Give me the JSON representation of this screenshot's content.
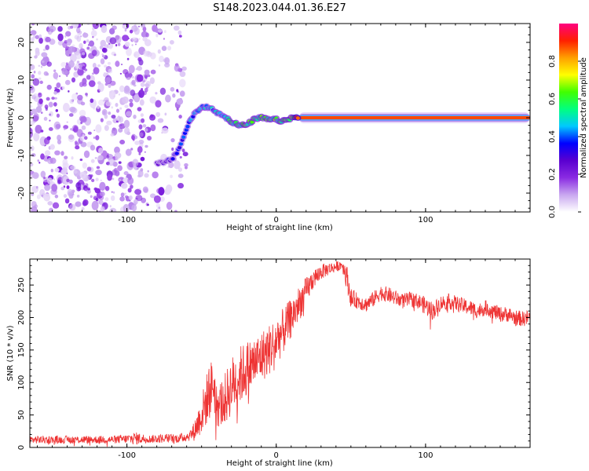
{
  "title": "S148.2023.044.01.36.E27",
  "chart_data": [
    {
      "type": "heatmap",
      "xlabel": "Height of straight line (km)",
      "ylabel": "Frequency (Hz)",
      "xlim": [
        -165,
        170
      ],
      "ylim": [
        -25,
        25
      ],
      "xticks": [
        -100,
        0,
        100
      ],
      "yticks": [
        -20,
        -10,
        0,
        10,
        20
      ],
      "colorbar": {
        "label": "Normalized spectral amplitude",
        "range": [
          0,
          1
        ],
        "ticks": [
          0.0,
          0.2,
          0.4,
          0.6,
          0.8
        ],
        "tick_labels": [
          "0.0",
          "0.2",
          "0.4",
          "0.6",
          "0.8"
        ],
        "colormap": [
          "#ffffff",
          "#c9a8f0",
          "#8a2be2",
          "#5a00d0",
          "#0000ff",
          "#00c8ff",
          "#00ff80",
          "#40ff00",
          "#ffff00",
          "#ffa000",
          "#ff2000",
          "#ff0080"
        ]
      },
      "ridge": {
        "x": [
          -80,
          -75,
          -70,
          -66,
          -62,
          -58,
          -55,
          -52,
          -48,
          -44,
          -40,
          -35,
          -30,
          -25,
          -20,
          -15,
          -10,
          -5,
          0,
          5,
          10,
          15,
          170
        ],
        "y": [
          -12,
          -12,
          -11,
          -9,
          -5,
          -1,
          1,
          2,
          3,
          2.5,
          1.5,
          0.5,
          -1,
          -2,
          -2,
          -0.5,
          0,
          -0.5,
          -0.5,
          -1,
          0,
          0,
          0
        ],
        "amplitude": [
          0.28,
          0.3,
          0.32,
          0.35,
          0.38,
          0.42,
          0.45,
          0.5,
          0.48,
          0.45,
          0.5,
          0.55,
          0.58,
          0.6,
          0.62,
          0.6,
          0.62,
          0.6,
          0.65,
          0.6,
          0.7,
          0.9,
          0.92
        ]
      },
      "noise_region": {
        "x": [
          -165,
          -70
        ],
        "amplitude_max": 0.2
      }
    },
    {
      "type": "line",
      "xlabel": "Height of straight line (km)",
      "ylabel": "SNR (10 * v/v)",
      "xlim": [
        -165,
        170
      ],
      "ylim": [
        0,
        290
      ],
      "xticks": [
        -100,
        0,
        100
      ],
      "yticks": [
        0,
        50,
        100,
        150,
        200,
        250
      ],
      "series": [
        {
          "color": "#ee3333",
          "x": [
            -165,
            -150,
            -130,
            -110,
            -100,
            -95,
            -85,
            -75,
            -65,
            -58,
            -55,
            -50,
            -45,
            -42,
            -40,
            -35,
            -30,
            -25,
            -20,
            -15,
            -10,
            -5,
            0,
            5,
            10,
            15,
            20,
            25,
            30,
            35,
            40,
            44,
            47,
            50,
            55,
            60,
            65,
            70,
            75,
            80,
            85,
            90,
            95,
            100,
            105,
            110,
            115,
            120,
            125,
            130,
            135,
            140,
            145,
            150,
            155,
            160,
            165,
            170
          ],
          "y": [
            12,
            12,
            12,
            12,
            13,
            14,
            13,
            14,
            14,
            18,
            25,
            50,
            85,
            100,
            65,
            70,
            95,
            110,
            120,
            130,
            140,
            150,
            165,
            180,
            200,
            220,
            240,
            260,
            270,
            275,
            278,
            282,
            265,
            230,
            225,
            220,
            228,
            238,
            235,
            230,
            225,
            228,
            225,
            218,
            210,
            222,
            225,
            222,
            218,
            215,
            210,
            215,
            210,
            205,
            205,
            200,
            198,
            200
          ],
          "noise_amplitude": [
            6,
            6,
            6,
            6,
            7,
            10,
            6,
            7,
            7,
            8,
            15,
            30,
            45,
            40,
            35,
            40,
            45,
            45,
            45,
            40,
            40,
            40,
            38,
            35,
            30,
            28,
            22,
            15,
            12,
            10,
            8,
            8,
            20,
            15,
            12,
            12,
            12,
            12,
            12,
            12,
            12,
            12,
            12,
            14,
            14,
            12,
            12,
            12,
            12,
            12,
            12,
            12,
            12,
            12,
            12,
            12,
            12,
            12
          ]
        }
      ]
    }
  ]
}
